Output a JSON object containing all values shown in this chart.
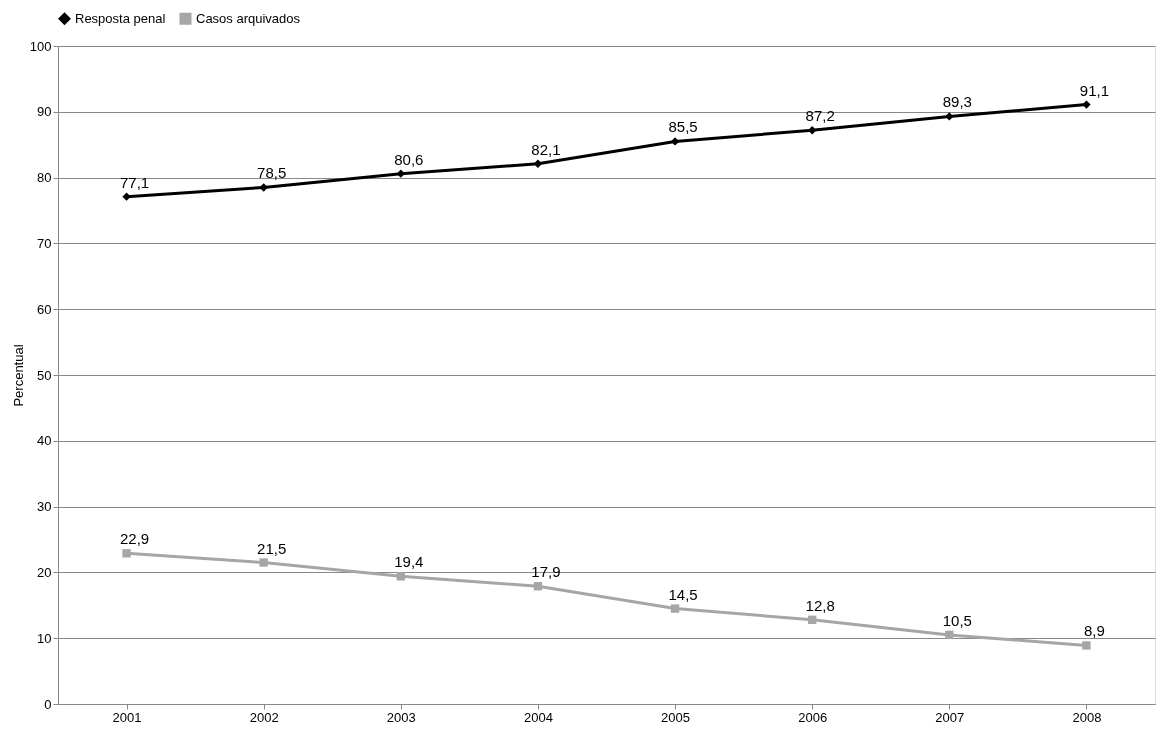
{
  "chart_data": {
    "type": "line",
    "ylabel": "Percentual",
    "categories": [
      "2001",
      "2002",
      "2003",
      "2004",
      "2005",
      "2006",
      "2007",
      "2008"
    ],
    "series": [
      {
        "name": "Resposta penal",
        "color": "#000000",
        "marker": "diamond",
        "values": [
          77.1,
          78.5,
          80.6,
          82.1,
          85.5,
          87.2,
          89.3,
          91.1
        ],
        "value_labels": [
          "77,1",
          "78,5",
          "80,6",
          "82,1",
          "85,5",
          "87,2",
          "89,3",
          "91,1"
        ]
      },
      {
        "name": "Casos arquivados",
        "color": "#a6a6a6",
        "marker": "square",
        "values": [
          22.9,
          21.5,
          19.4,
          17.9,
          14.5,
          12.8,
          10.5,
          8.9
        ],
        "value_labels": [
          "22,9",
          "21,5",
          "19,4",
          "17,9",
          "14,5",
          "12,8",
          "10,5",
          "8,9"
        ]
      }
    ],
    "ylim": [
      0,
      100
    ],
    "yticks": [
      0,
      10,
      20,
      30,
      40,
      50,
      60,
      70,
      80,
      90,
      100
    ],
    "grid": "y",
    "legend": "top",
    "line_style": "solid"
  }
}
